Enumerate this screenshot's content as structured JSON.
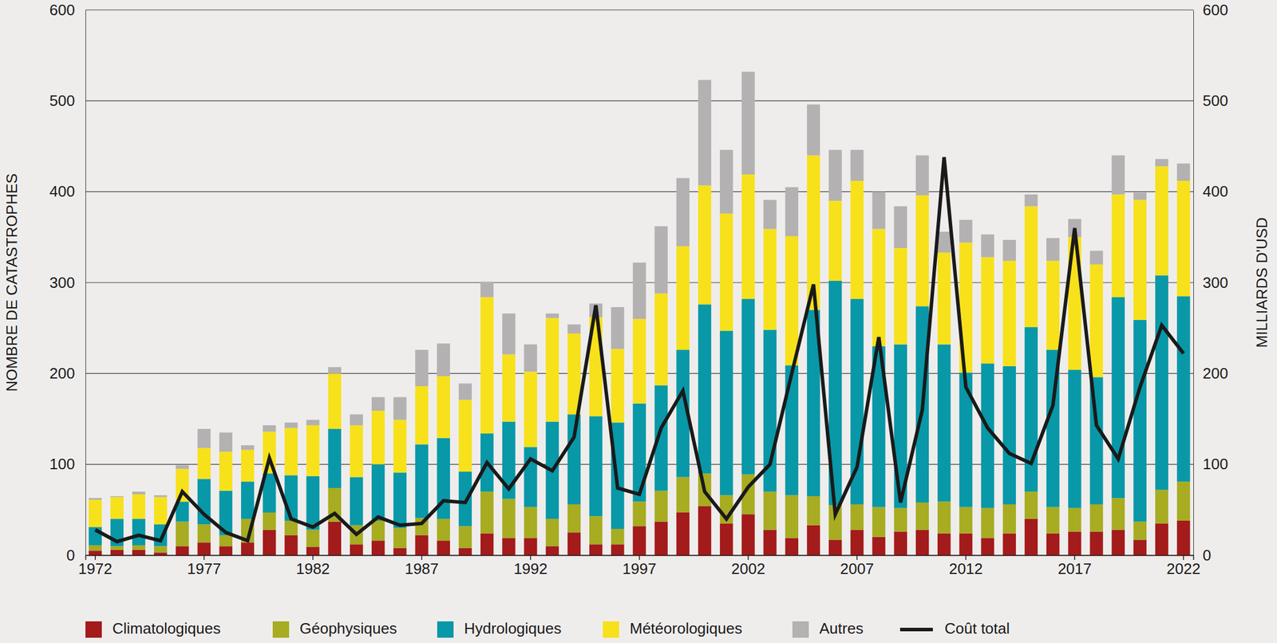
{
  "chart_data": {
    "type": "bar",
    "stacked": true,
    "grid": true,
    "y_label": "NOMBRE DE CATASTROPHES",
    "y2_label": "MILLIARDS D'USD",
    "categories": [
      "1972",
      null,
      null,
      null,
      null,
      "1977",
      null,
      null,
      null,
      null,
      "1982",
      null,
      null,
      null,
      null,
      "1987",
      null,
      null,
      null,
      null,
      "1992",
      null,
      null,
      null,
      null,
      "1997",
      null,
      null,
      null,
      null,
      "2002",
      null,
      null,
      null,
      null,
      "2007",
      null,
      null,
      null,
      null,
      "2012",
      null,
      null,
      null,
      null,
      "2017",
      null,
      null,
      null,
      null,
      "2022"
    ],
    "ylim": [
      0,
      600
    ],
    "yticks": [
      0,
      100,
      200,
      300,
      400,
      500,
      600
    ],
    "y2lim": [
      0,
      600
    ],
    "y2ticks": [
      0,
      100,
      200,
      300,
      400,
      500,
      600
    ],
    "series": [
      {
        "name": "Climatologiques",
        "color": "#a31b1b",
        "values": [
          5,
          6,
          6,
          3,
          10,
          14,
          10,
          14,
          28,
          22,
          9,
          37,
          12,
          16,
          8,
          22,
          16,
          8,
          24,
          19,
          19,
          10,
          25,
          12,
          12,
          32,
          37,
          47,
          54,
          35,
          45,
          28,
          19,
          33,
          17,
          28,
          20,
          26,
          28,
          24,
          24,
          19,
          24,
          40,
          24,
          26,
          26,
          28,
          17,
          35,
          38
        ]
      },
      {
        "name": "Géophysiques",
        "color": "#a7ac21",
        "values": [
          6,
          4,
          5,
          7,
          27,
          20,
          12,
          26,
          19,
          16,
          19,
          37,
          21,
          22,
          22,
          19,
          24,
          24,
          46,
          43,
          34,
          30,
          31,
          31,
          17,
          27,
          34,
          39,
          36,
          31,
          44,
          42,
          47,
          32,
          38,
          28,
          33,
          26,
          30,
          35,
          29,
          33,
          32,
          30,
          29,
          26,
          30,
          35,
          20,
          37,
          43
        ]
      },
      {
        "name": "Hydrologiques",
        "color": "#0898a8",
        "values": [
          20,
          30,
          29,
          24,
          22,
          50,
          49,
          41,
          43,
          50,
          59,
          65,
          53,
          62,
          61,
          81,
          89,
          60,
          64,
          85,
          66,
          107,
          99,
          110,
          117,
          108,
          116,
          140,
          186,
          181,
          193,
          178,
          143,
          205,
          247,
          226,
          177,
          180,
          216,
          173,
          148,
          159,
          152,
          181,
          173,
          152,
          140,
          221,
          222,
          236,
          204
        ]
      },
      {
        "name": "Météorologiques",
        "color": "#f7e11b",
        "values": [
          30,
          24,
          27,
          30,
          36,
          34,
          43,
          35,
          46,
          52,
          56,
          61,
          57,
          59,
          58,
          64,
          68,
          79,
          150,
          74,
          83,
          114,
          89,
          109,
          81,
          93,
          101,
          114,
          131,
          129,
          137,
          111,
          142,
          170,
          88,
          130,
          129,
          106,
          122,
          101,
          143,
          117,
          116,
          133,
          98,
          146,
          124,
          113,
          132,
          120,
          127
        ]
      },
      {
        "name": "Autres",
        "color": "#b3b1b1",
        "values": [
          2,
          1,
          3,
          2,
          4,
          21,
          21,
          5,
          7,
          6,
          6,
          7,
          12,
          15,
          25,
          40,
          36,
          18,
          17,
          45,
          30,
          5,
          10,
          15,
          46,
          62,
          74,
          75,
          116,
          70,
          113,
          32,
          54,
          56,
          56,
          34,
          41,
          46,
          44,
          23,
          25,
          25,
          23,
          13,
          25,
          20,
          15,
          43,
          8,
          8,
          19
        ]
      },
      {
        "name": "Coût total",
        "type": "line",
        "axis": "y2",
        "color": "#1a1a1a",
        "values": [
          28,
          15,
          22,
          16,
          70,
          45,
          25,
          16,
          107,
          40,
          31,
          46,
          23,
          42,
          33,
          35,
          60,
          58,
          102,
          73,
          106,
          93,
          130,
          275,
          74,
          67,
          140,
          181,
          70,
          40,
          75,
          100,
          200,
          298,
          45,
          97,
          240,
          58,
          160,
          438,
          185,
          140,
          112,
          101,
          165,
          360,
          143,
          106,
          185,
          253,
          222
        ]
      }
    ]
  }
}
